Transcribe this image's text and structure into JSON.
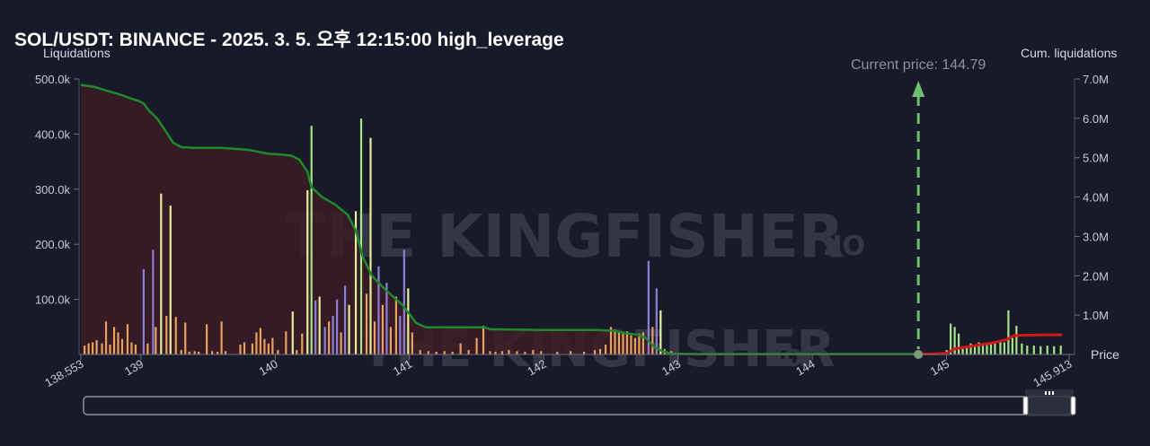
{
  "title": "SOL/USDT: BINANCE - 2025. 3. 5. 오후 12:15:00 high_leverage",
  "watermark": {
    "main": "THE KINGFISHER",
    "suffix": ".IO"
  },
  "colors": {
    "background": "#181a2a",
    "cum_line_left": "#1f8a2a",
    "cum_line_right": "#d01818",
    "cum_fill_left": "#3b1c24",
    "bar_orange": "#e9a15d",
    "bar_yellow": "#e6ee9c",
    "bar_green": "#a6e48a",
    "bar_purple": "#8e7fd6",
    "current_price": "#6fbf6f"
  },
  "chart_data": {
    "type": "bar",
    "title": "SOL/USDT: BINANCE - 2025. 3. 5. 오후 12:15:00 high_leverage",
    "xlabel": "Price",
    "ylabel": "Liquidations",
    "y2label": "Cum. liquidations",
    "xlim": [
      138.553,
      145.913
    ],
    "ylim": [
      0,
      500000
    ],
    "y2lim": [
      0,
      7000000
    ],
    "x_ticks": [
      "138.553",
      "139",
      "140",
      "141",
      "142",
      "143",
      "144",
      "145",
      "145.913"
    ],
    "y_ticks": [
      "500.0k",
      "400.0k",
      "300.0k",
      "200.0k",
      "100.0k"
    ],
    "y2_ticks": [
      "7.0M",
      "6.0M",
      "5.0M",
      "4.0M",
      "3.0M",
      "2.0M",
      "1.0M"
    ],
    "current_price": {
      "label": "Current price: 144.79",
      "value": 144.79
    },
    "bars": [
      {
        "x": 138.58,
        "v": 16000,
        "c": "orange"
      },
      {
        "x": 138.61,
        "v": 20000,
        "c": "orange"
      },
      {
        "x": 138.64,
        "v": 22000,
        "c": "orange"
      },
      {
        "x": 138.67,
        "v": 26000,
        "c": "orange"
      },
      {
        "x": 138.71,
        "v": 20000,
        "c": "orange"
      },
      {
        "x": 138.74,
        "v": 60000,
        "c": "orange"
      },
      {
        "x": 138.77,
        "v": 18000,
        "c": "orange"
      },
      {
        "x": 138.8,
        "v": 50000,
        "c": "orange"
      },
      {
        "x": 138.83,
        "v": 40000,
        "c": "orange"
      },
      {
        "x": 138.86,
        "v": 28000,
        "c": "orange"
      },
      {
        "x": 138.9,
        "v": 55000,
        "c": "orange"
      },
      {
        "x": 138.93,
        "v": 22000,
        "c": "orange"
      },
      {
        "x": 138.96,
        "v": 18000,
        "c": "orange"
      },
      {
        "x": 139.02,
        "v": 155000,
        "c": "purple"
      },
      {
        "x": 139.05,
        "v": 20000,
        "c": "orange"
      },
      {
        "x": 139.09,
        "v": 190000,
        "c": "purple"
      },
      {
        "x": 139.11,
        "v": 50000,
        "c": "orange"
      },
      {
        "x": 139.15,
        "v": 292000,
        "c": "yellow"
      },
      {
        "x": 139.19,
        "v": 70000,
        "c": "orange"
      },
      {
        "x": 139.22,
        "v": 270000,
        "c": "yellow"
      },
      {
        "x": 139.26,
        "v": 68000,
        "c": "orange"
      },
      {
        "x": 139.3,
        "v": 8000,
        "c": "orange"
      },
      {
        "x": 139.33,
        "v": 58000,
        "c": "orange"
      },
      {
        "x": 139.36,
        "v": 5000,
        "c": "orange"
      },
      {
        "x": 139.4,
        "v": 6000,
        "c": "orange"
      },
      {
        "x": 139.43,
        "v": 5000,
        "c": "orange"
      },
      {
        "x": 139.49,
        "v": 55000,
        "c": "orange"
      },
      {
        "x": 139.53,
        "v": 6000,
        "c": "orange"
      },
      {
        "x": 139.57,
        "v": 5000,
        "c": "orange"
      },
      {
        "x": 139.6,
        "v": 60000,
        "c": "orange"
      },
      {
        "x": 139.63,
        "v": 6000,
        "c": "orange"
      },
      {
        "x": 139.74,
        "v": 18000,
        "c": "orange"
      },
      {
        "x": 139.77,
        "v": 22000,
        "c": "orange"
      },
      {
        "x": 139.83,
        "v": 20000,
        "c": "orange"
      },
      {
        "x": 139.86,
        "v": 40000,
        "c": "orange"
      },
      {
        "x": 139.89,
        "v": 48000,
        "c": "orange"
      },
      {
        "x": 139.92,
        "v": 28000,
        "c": "orange"
      },
      {
        "x": 139.95,
        "v": 20000,
        "c": "orange"
      },
      {
        "x": 139.98,
        "v": 30000,
        "c": "orange"
      },
      {
        "x": 140.02,
        "v": 8000,
        "c": "orange"
      },
      {
        "x": 140.08,
        "v": 42000,
        "c": "orange"
      },
      {
        "x": 140.13,
        "v": 78000,
        "c": "yellow"
      },
      {
        "x": 140.16,
        "v": 8000,
        "c": "orange"
      },
      {
        "x": 140.2,
        "v": 38000,
        "c": "orange"
      },
      {
        "x": 140.24,
        "v": 298000,
        "c": "yellow"
      },
      {
        "x": 140.27,
        "v": 415000,
        "c": "green"
      },
      {
        "x": 140.3,
        "v": 98000,
        "c": "purple"
      },
      {
        "x": 140.33,
        "v": 105000,
        "c": "yellow"
      },
      {
        "x": 140.37,
        "v": 50000,
        "c": "purple"
      },
      {
        "x": 140.4,
        "v": 60000,
        "c": "orange"
      },
      {
        "x": 140.43,
        "v": 70000,
        "c": "purple"
      },
      {
        "x": 140.46,
        "v": 100000,
        "c": "purple"
      },
      {
        "x": 140.49,
        "v": 40000,
        "c": "orange"
      },
      {
        "x": 140.52,
        "v": 125000,
        "c": "purple"
      },
      {
        "x": 140.55,
        "v": 90000,
        "c": "yellow"
      },
      {
        "x": 140.6,
        "v": 260000,
        "c": "yellow"
      },
      {
        "x": 140.64,
        "v": 428000,
        "c": "green"
      },
      {
        "x": 140.68,
        "v": 110000,
        "c": "orange"
      },
      {
        "x": 140.71,
        "v": 393000,
        "c": "yellow"
      },
      {
        "x": 140.74,
        "v": 60000,
        "c": "orange"
      },
      {
        "x": 140.77,
        "v": 160000,
        "c": "purple"
      },
      {
        "x": 140.8,
        "v": 90000,
        "c": "orange"
      },
      {
        "x": 140.83,
        "v": 130000,
        "c": "purple"
      },
      {
        "x": 140.86,
        "v": 50000,
        "c": "orange"
      },
      {
        "x": 140.9,
        "v": 105000,
        "c": "orange"
      },
      {
        "x": 140.93,
        "v": 70000,
        "c": "purple"
      },
      {
        "x": 140.96,
        "v": 190000,
        "c": "purple"
      },
      {
        "x": 140.99,
        "v": 120000,
        "c": "yellow"
      },
      {
        "x": 141.02,
        "v": 40000,
        "c": "orange"
      },
      {
        "x": 141.08,
        "v": 8000,
        "c": "orange"
      },
      {
        "x": 141.14,
        "v": 6000,
        "c": "orange"
      },
      {
        "x": 141.2,
        "v": 5000,
        "c": "orange"
      },
      {
        "x": 141.26,
        "v": 6000,
        "c": "orange"
      },
      {
        "x": 141.32,
        "v": 5000,
        "c": "orange"
      },
      {
        "x": 141.38,
        "v": 20000,
        "c": "orange"
      },
      {
        "x": 141.44,
        "v": 8000,
        "c": "orange"
      },
      {
        "x": 141.5,
        "v": 30000,
        "c": "orange"
      },
      {
        "x": 141.55,
        "v": 52000,
        "c": "orange"
      },
      {
        "x": 141.6,
        "v": 6000,
        "c": "orange"
      },
      {
        "x": 141.64,
        "v": 5000,
        "c": "orange"
      },
      {
        "x": 141.69,
        "v": 6000,
        "c": "orange"
      },
      {
        "x": 141.74,
        "v": 8000,
        "c": "orange"
      },
      {
        "x": 141.8,
        "v": 6000,
        "c": "orange"
      },
      {
        "x": 141.86,
        "v": 5000,
        "c": "orange"
      },
      {
        "x": 141.92,
        "v": 8000,
        "c": "orange"
      },
      {
        "x": 141.98,
        "v": 6000,
        "c": "orange"
      },
      {
        "x": 142.1,
        "v": 5000,
        "c": "orange"
      },
      {
        "x": 142.2,
        "v": 6000,
        "c": "orange"
      },
      {
        "x": 142.3,
        "v": 5000,
        "c": "orange"
      },
      {
        "x": 142.38,
        "v": 8000,
        "c": "orange"
      },
      {
        "x": 142.42,
        "v": 10000,
        "c": "orange"
      },
      {
        "x": 142.46,
        "v": 18000,
        "c": "orange"
      },
      {
        "x": 142.5,
        "v": 50000,
        "c": "orange"
      },
      {
        "x": 142.53,
        "v": 45000,
        "c": "orange"
      },
      {
        "x": 142.56,
        "v": 40000,
        "c": "orange"
      },
      {
        "x": 142.59,
        "v": 38000,
        "c": "orange"
      },
      {
        "x": 142.62,
        "v": 42000,
        "c": "orange"
      },
      {
        "x": 142.65,
        "v": 35000,
        "c": "orange"
      },
      {
        "x": 142.68,
        "v": 30000,
        "c": "orange"
      },
      {
        "x": 142.71,
        "v": 38000,
        "c": "orange"
      },
      {
        "x": 142.74,
        "v": 40000,
        "c": "orange"
      },
      {
        "x": 142.78,
        "v": 170000,
        "c": "purple"
      },
      {
        "x": 142.81,
        "v": 50000,
        "c": "orange"
      },
      {
        "x": 142.84,
        "v": 120000,
        "c": "purple"
      },
      {
        "x": 142.87,
        "v": 80000,
        "c": "yellow"
      },
      {
        "x": 142.9,
        "v": 10000,
        "c": "orange"
      },
      {
        "x": 142.95,
        "v": 6000,
        "c": "orange"
      },
      {
        "x": 145.0,
        "v": 8000,
        "c": "green"
      },
      {
        "x": 145.03,
        "v": 56000,
        "c": "green"
      },
      {
        "x": 145.06,
        "v": 50000,
        "c": "green"
      },
      {
        "x": 145.09,
        "v": 38000,
        "c": "green"
      },
      {
        "x": 145.12,
        "v": 15000,
        "c": "green"
      },
      {
        "x": 145.15,
        "v": 16000,
        "c": "green"
      },
      {
        "x": 145.18,
        "v": 20000,
        "c": "green"
      },
      {
        "x": 145.21,
        "v": 18000,
        "c": "green"
      },
      {
        "x": 145.24,
        "v": 22000,
        "c": "green"
      },
      {
        "x": 145.27,
        "v": 16000,
        "c": "green"
      },
      {
        "x": 145.3,
        "v": 18000,
        "c": "green"
      },
      {
        "x": 145.33,
        "v": 20000,
        "c": "green"
      },
      {
        "x": 145.36,
        "v": 24000,
        "c": "green"
      },
      {
        "x": 145.4,
        "v": 22000,
        "c": "green"
      },
      {
        "x": 145.43,
        "v": 22000,
        "c": "green"
      },
      {
        "x": 145.46,
        "v": 80000,
        "c": "green"
      },
      {
        "x": 145.49,
        "v": 30000,
        "c": "green"
      },
      {
        "x": 145.52,
        "v": 52000,
        "c": "green"
      },
      {
        "x": 145.56,
        "v": 20000,
        "c": "green"
      },
      {
        "x": 145.6,
        "v": 16000,
        "c": "green"
      },
      {
        "x": 145.65,
        "v": 16000,
        "c": "green"
      },
      {
        "x": 145.7,
        "v": 15000,
        "c": "green"
      },
      {
        "x": 145.75,
        "v": 16000,
        "c": "green"
      },
      {
        "x": 145.8,
        "v": 15000,
        "c": "green"
      },
      {
        "x": 145.85,
        "v": 16000,
        "c": "green"
      }
    ],
    "cum_left": [
      [
        138.553,
        6850000
      ],
      [
        138.65,
        6800000
      ],
      [
        138.75,
        6700000
      ],
      [
        138.85,
        6600000
      ],
      [
        138.93,
        6500000
      ],
      [
        138.98,
        6450000
      ],
      [
        139.02,
        6380000
      ],
      [
        139.06,
        6200000
      ],
      [
        139.12,
        6000000
      ],
      [
        139.18,
        5700000
      ],
      [
        139.24,
        5380000
      ],
      [
        139.3,
        5270000
      ],
      [
        139.4,
        5250000
      ],
      [
        139.6,
        5250000
      ],
      [
        139.8,
        5200000
      ],
      [
        139.95,
        5100000
      ],
      [
        140.05,
        5080000
      ],
      [
        140.12,
        5050000
      ],
      [
        140.18,
        4950000
      ],
      [
        140.24,
        4650000
      ],
      [
        140.27,
        4250000
      ],
      [
        140.35,
        4000000
      ],
      [
        140.45,
        3800000
      ],
      [
        140.54,
        3550000
      ],
      [
        140.6,
        3150000
      ],
      [
        140.65,
        2500000
      ],
      [
        140.72,
        2000000
      ],
      [
        140.82,
        1650000
      ],
      [
        140.95,
        1250000
      ],
      [
        141.05,
        800000
      ],
      [
        141.12,
        690000
      ],
      [
        141.4,
        690000
      ],
      [
        141.56,
        690000
      ],
      [
        141.6,
        640000
      ],
      [
        142.0,
        620000
      ],
      [
        142.4,
        620000
      ],
      [
        142.52,
        600000
      ],
      [
        142.58,
        560000
      ],
      [
        142.7,
        500000
      ],
      [
        142.76,
        420000
      ],
      [
        142.82,
        200000
      ],
      [
        142.88,
        90000
      ],
      [
        142.95,
        20000
      ],
      [
        143.1,
        10000
      ],
      [
        144.79,
        10000
      ]
    ],
    "cum_right": [
      [
        144.79,
        10000
      ],
      [
        144.9,
        15000
      ],
      [
        145.0,
        30000
      ],
      [
        145.06,
        140000
      ],
      [
        145.2,
        220000
      ],
      [
        145.35,
        300000
      ],
      [
        145.45,
        380000
      ],
      [
        145.5,
        480000
      ],
      [
        145.6,
        490000
      ],
      [
        145.75,
        500000
      ],
      [
        145.86,
        500000
      ]
    ]
  }
}
